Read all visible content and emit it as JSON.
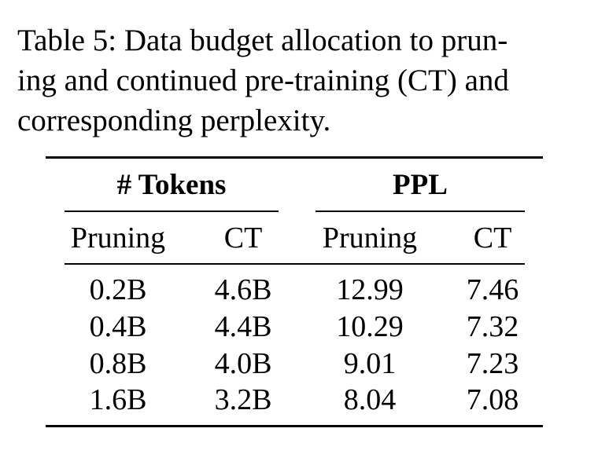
{
  "caption": {
    "lines": [
      "Table 5: Data budget allocation to prun-",
      "ing and continued pre-training (CT) and",
      "corresponding perplexity."
    ]
  },
  "table": {
    "group_headers": [
      "# Tokens",
      "PPL"
    ],
    "sub_headers": [
      "Pruning",
      "CT",
      "Pruning",
      "CT"
    ],
    "rows": [
      [
        "0.2B",
        "4.6B",
        "12.99",
        "7.46"
      ],
      [
        "0.4B",
        "4.4B",
        "10.29",
        "7.32"
      ],
      [
        "0.8B",
        "4.0B",
        "9.01",
        "7.23"
      ],
      [
        "1.6B",
        "3.2B",
        "8.04",
        "7.08"
      ]
    ]
  }
}
